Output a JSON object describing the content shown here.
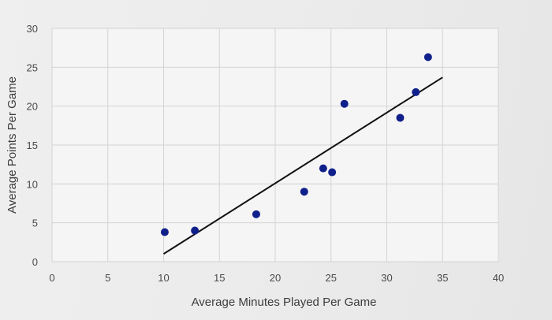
{
  "chart_data": {
    "type": "scatter",
    "title": "",
    "xlabel": "Average Minutes Played Per Game",
    "ylabel": "Average Points Per Game",
    "xlim": [
      0,
      40
    ],
    "ylim": [
      0,
      30
    ],
    "x_ticks": [
      0,
      5,
      10,
      15,
      20,
      25,
      30,
      35,
      40
    ],
    "y_ticks": [
      0,
      5,
      10,
      15,
      20,
      25,
      30
    ],
    "grid": true,
    "legend": "none",
    "point_color": "#10208a",
    "line_color": "#111111",
    "points": [
      {
        "x": 10.1,
        "y": 3.8
      },
      {
        "x": 12.8,
        "y": 4.0
      },
      {
        "x": 18.3,
        "y": 6.1
      },
      {
        "x": 22.6,
        "y": 9.0
      },
      {
        "x": 24.3,
        "y": 12.0
      },
      {
        "x": 25.1,
        "y": 11.5
      },
      {
        "x": 26.2,
        "y": 20.3
      },
      {
        "x": 31.2,
        "y": 18.5
      },
      {
        "x": 32.6,
        "y": 21.8
      },
      {
        "x": 33.7,
        "y": 26.3
      }
    ],
    "trendline": {
      "x1": 10.0,
      "y1": 1.0,
      "x2": 35.0,
      "y2": 23.7
    }
  }
}
